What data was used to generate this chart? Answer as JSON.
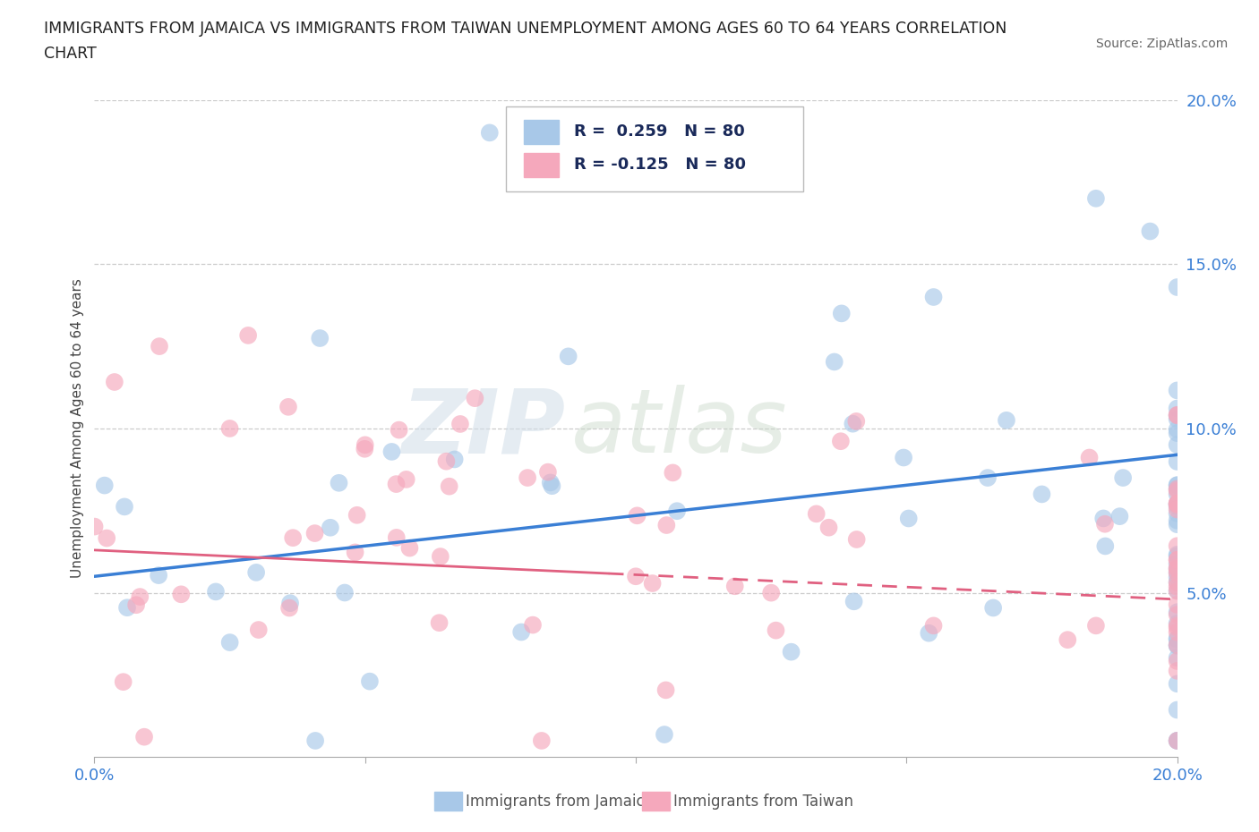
{
  "title_line1": "IMMIGRANTS FROM JAMAICA VS IMMIGRANTS FROM TAIWAN UNEMPLOYMENT AMONG AGES 60 TO 64 YEARS CORRELATION",
  "title_line2": "CHART",
  "source_text": "Source: ZipAtlas.com",
  "ylabel": "Unemployment Among Ages 60 to 64 years",
  "xlim": [
    0.0,
    0.2
  ],
  "ylim": [
    0.0,
    0.2
  ],
  "yticks": [
    0.05,
    0.1,
    0.15,
    0.2
  ],
  "yticklabels": [
    "5.0%",
    "10.0%",
    "15.0%",
    "20.0%"
  ],
  "grid_color": "#cccccc",
  "background_color": "#ffffff",
  "jamaica_color": "#a8c8e8",
  "taiwan_color": "#f5a8bc",
  "jamaica_line_color": "#3a7fd5",
  "taiwan_line_color": "#e06080",
  "jamaica_R": 0.259,
  "jamaica_N": 80,
  "taiwan_R": -0.125,
  "taiwan_N": 80,
  "watermark": "ZIPatlas"
}
